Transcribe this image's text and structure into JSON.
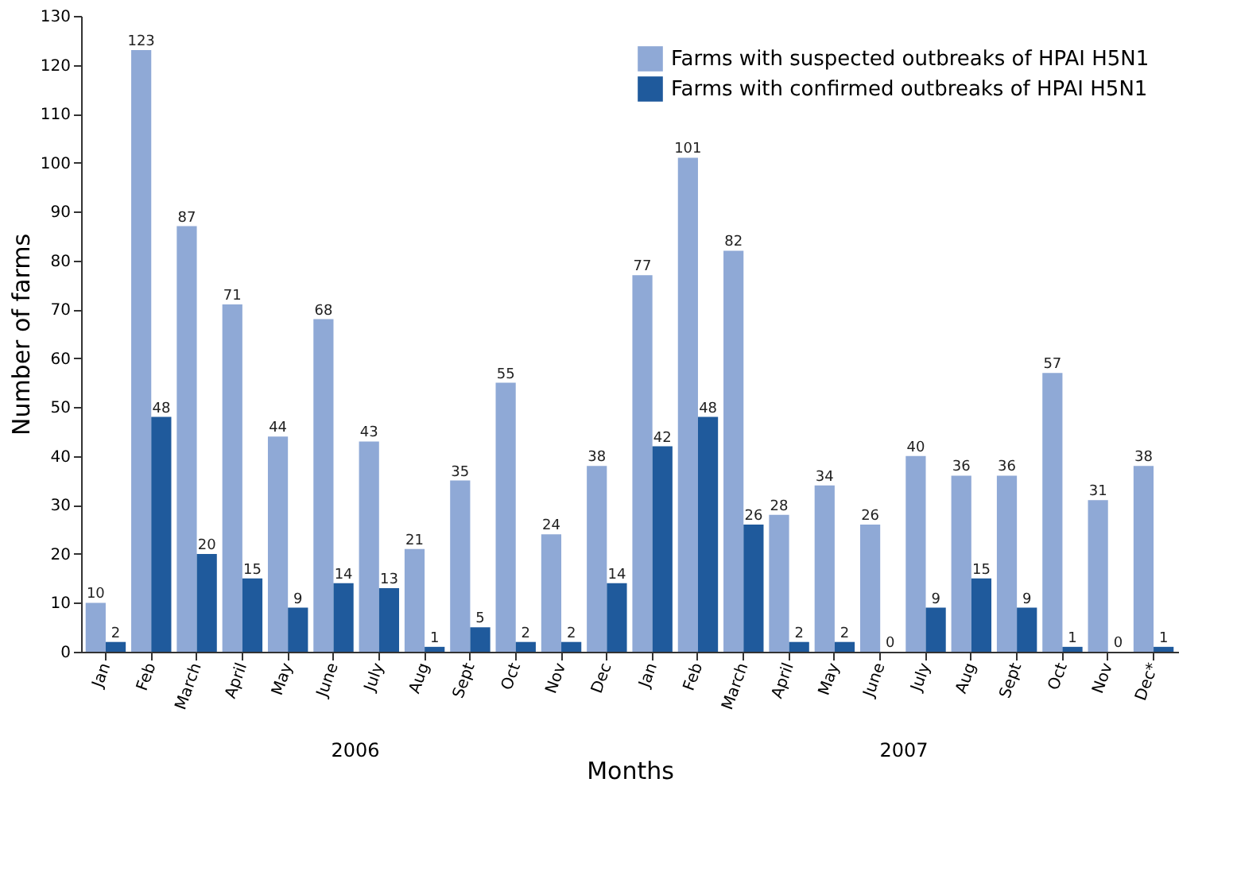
{
  "chart_data": {
    "type": "bar",
    "xlabel": "Months",
    "ylabel": "Number of farms",
    "categories": [
      "Jan",
      "Feb",
      "March",
      "April",
      "May",
      "June",
      "July",
      "Aug",
      "Sept",
      "Oct",
      "Nov",
      "Dec",
      "Jan",
      "Feb",
      "March",
      "April",
      "May",
      "June",
      "July",
      "Aug",
      "Sept",
      "Oct",
      "Nov",
      "Dec*"
    ],
    "series": [
      {
        "name": "Farms with suspected outbreaks of HPAI H5N1",
        "color": "#8fa9d6",
        "values": [
          10,
          123,
          87,
          71,
          44,
          68,
          43,
          21,
          35,
          55,
          24,
          38,
          77,
          101,
          82,
          28,
          34,
          26,
          40,
          36,
          36,
          57,
          31,
          38
        ]
      },
      {
        "name": "Farms with confirmed outbreaks of HPAI H5N1",
        "color": "#1f5a9c",
        "values": [
          2,
          48,
          20,
          15,
          9,
          14,
          13,
          1,
          5,
          2,
          2,
          14,
          42,
          48,
          26,
          2,
          2,
          0,
          9,
          15,
          9,
          1,
          0,
          1
        ]
      }
    ],
    "annotations": [
      "2006",
      "2007"
    ],
    "ylim": [
      0,
      130
    ],
    "yticks": [
      0,
      10,
      20,
      30,
      40,
      50,
      60,
      70,
      80,
      90,
      100,
      110,
      120,
      130
    ],
    "data_labels": true,
    "grid": false,
    "legend": "top right"
  }
}
